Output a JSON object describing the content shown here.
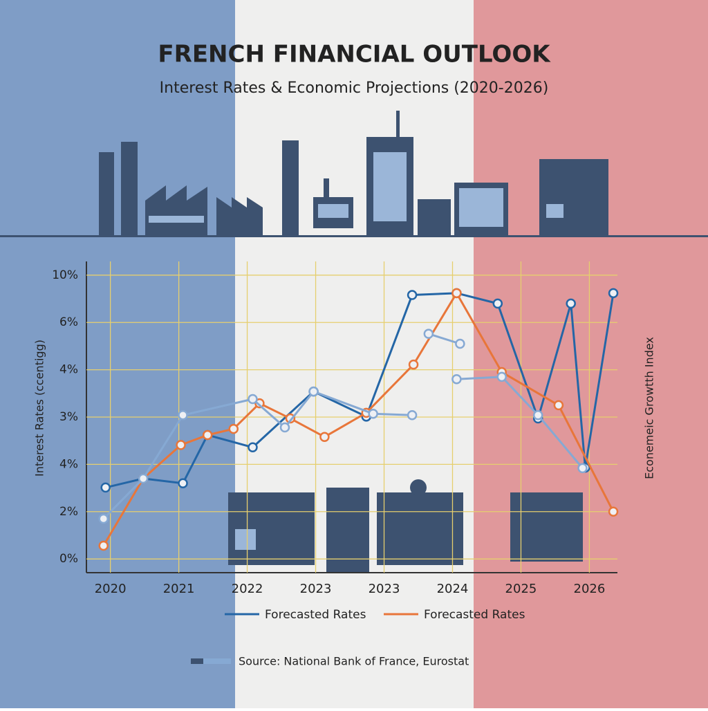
{
  "chart_data": {
    "type": "line",
    "title": "FRENCH FINANCIAL OUTLOOK",
    "subtitle": "Interest Rates & Economic Projections (2020-2026)",
    "y_label": "Interest Rates (ccentigg)",
    "y2_label": "Econemeic Growtth Index",
    "source": "Source: National Bank of France, Eurostat",
    "xlim": [
      -0.35,
      7.41
    ],
    "xticks": [
      {
        "value": 0,
        "label": "2020"
      },
      {
        "value": 1,
        "label": "2021"
      },
      {
        "value": 2,
        "label": "2022"
      },
      {
        "value": 3,
        "label": "2023"
      },
      {
        "value": 4,
        "label": "2023"
      },
      {
        "value": 5,
        "label": "2024"
      },
      {
        "value": 6,
        "label": "2025"
      },
      {
        "value": 7,
        "label": "2026"
      }
    ],
    "ylim": [
      -0.29,
      6.29
    ],
    "yticks": [
      {
        "value": 6,
        "label": "10%"
      },
      {
        "value": 5,
        "label": "6%"
      },
      {
        "value": 4,
        "label": "4%"
      },
      {
        "value": 3,
        "label": "3%"
      },
      {
        "value": 2,
        "label": "4%"
      },
      {
        "value": 1,
        "label": "2%"
      },
      {
        "value": 0,
        "label": "0%"
      }
    ],
    "grid": true,
    "series": [
      {
        "name": "Forecasted Rates",
        "color": "#2466a6",
        "x": [
          -0.07,
          0.48,
          1.06,
          1.42,
          2.08,
          2.97,
          3.74,
          4.41,
          5.06,
          5.66,
          6.25,
          6.73,
          6.94,
          7.35
        ],
        "values": [
          1.51,
          1.7,
          1.6,
          2.62,
          2.36,
          3.54,
          3.01,
          5.58,
          5.62,
          5.4,
          2.97,
          5.4,
          1.93,
          5.62
        ]
      },
      {
        "name": "Forecasted Rates",
        "color": "#e8763a",
        "x": [
          -0.1,
          0.48,
          1.03,
          1.42,
          1.8,
          2.18,
          2.63,
          3.13,
          3.74,
          4.43,
          5.06,
          5.72,
          6.55,
          7.35
        ],
        "values": [
          0.28,
          1.7,
          2.41,
          2.62,
          2.75,
          3.29,
          2.97,
          2.58,
          3.09,
          4.11,
          5.62,
          3.95,
          3.25,
          1.0
        ]
      },
      {
        "color": "#86a9d3",
        "x": [
          -0.1,
          0.48,
          1.06,
          2.08,
          2.55,
          2.97,
          3.84,
          4.41,
          null,
          4.65,
          5.11,
          null,
          5.06,
          5.72,
          6.25,
          6.9
        ],
        "values": [
          0.85,
          1.7,
          3.04,
          3.38,
          2.78,
          3.54,
          3.07,
          3.04,
          null,
          4.76,
          4.55,
          null,
          3.8,
          3.85,
          3.04,
          1.92
        ]
      }
    ]
  }
}
